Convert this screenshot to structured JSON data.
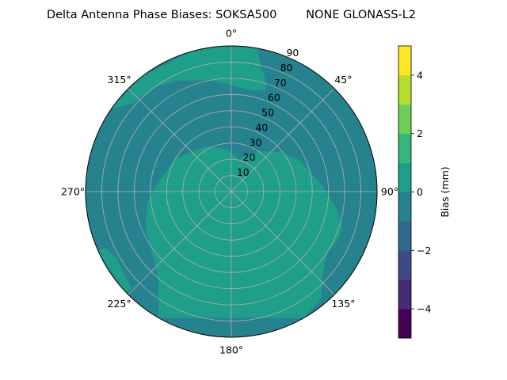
{
  "chart_data": {
    "type": "heatmap",
    "projection": "polar",
    "title": "Delta Antenna Phase Biases: SOKSA500        NONE GLONASS-L2",
    "theta_direction": "clockwise",
    "theta_zero": "top",
    "theta_ticks": [
      {
        "deg": 0,
        "label": "0°"
      },
      {
        "deg": 45,
        "label": "45°"
      },
      {
        "deg": 90,
        "label": "90°"
      },
      {
        "deg": 135,
        "label": "135°"
      },
      {
        "deg": 180,
        "label": "180°"
      },
      {
        "deg": 225,
        "label": "225°"
      },
      {
        "deg": 270,
        "label": "270°"
      },
      {
        "deg": 315,
        "label": "315°"
      }
    ],
    "r_range": [
      0,
      90
    ],
    "r_ticks": [
      10,
      20,
      30,
      40,
      50,
      60,
      70,
      80,
      90
    ],
    "r_tick_labels": [
      "10",
      "20",
      "30",
      "40",
      "50",
      "60",
      "70",
      "80",
      "90"
    ],
    "grid": true,
    "colorbar": {
      "label": "Bias (mm)",
      "range": [
        -5,
        5
      ],
      "levels": [
        -5,
        -4,
        -3,
        -2,
        -1,
        0,
        1,
        2,
        3,
        4,
        5
      ],
      "colors": [
        "#440154",
        "#482878",
        "#3e4989",
        "#31688e",
        "#26828e",
        "#1f9e89",
        "#35b779",
        "#6ece58",
        "#b5de2b",
        "#fde725"
      ],
      "ticks": [
        -4,
        -2,
        0,
        2,
        4
      ],
      "tick_labels": [
        "−4",
        "−2",
        "0",
        "2",
        "4"
      ]
    },
    "background_level": [
      -1,
      0
    ],
    "background_color": "#26828e",
    "regions": [
      {
        "level": [
          0,
          1
        ],
        "color": "#1f9e89",
        "name": "south-positive-lobe",
        "polygon_theta_r": [
          [
            20,
            22
          ],
          [
            35,
            30
          ],
          [
            50,
            38
          ],
          [
            65,
            46
          ],
          [
            80,
            52
          ],
          [
            92,
            60
          ],
          [
            100,
            66
          ],
          [
            108,
            72
          ],
          [
            115,
            72
          ],
          [
            122,
            70
          ],
          [
            130,
            74
          ],
          [
            140,
            86
          ],
          [
            150,
            90
          ],
          [
            210,
            90
          ],
          [
            214,
            80
          ],
          [
            220,
            70
          ],
          [
            228,
            64
          ],
          [
            236,
            60
          ],
          [
            244,
            58
          ],
          [
            250,
            56
          ],
          [
            262,
            52
          ],
          [
            275,
            46
          ],
          [
            300,
            40
          ],
          [
            330,
            32
          ],
          [
            355,
            26
          ],
          [
            15,
            20
          ]
        ]
      },
      {
        "level": [
          0,
          1
        ],
        "color": "#1f9e89",
        "name": "north-positive-lobe",
        "polygon_theta_r": [
          [
            305,
            90
          ],
          [
            322,
            90
          ],
          [
            345,
            90
          ],
          [
            358,
            90
          ],
          [
            10,
            90
          ],
          [
            13,
            80
          ],
          [
            18,
            70
          ],
          [
            18,
            66
          ],
          [
            10,
            64
          ],
          [
            0,
            66
          ],
          [
            -10,
            70
          ],
          [
            -25,
            76
          ],
          [
            -35,
            80
          ],
          [
            -48,
            82
          ],
          [
            -55,
            90
          ]
        ]
      },
      {
        "level": [
          0,
          1
        ],
        "color": "#1f9e89",
        "name": "southwest-edge-patch",
        "polygon_theta_r": [
          [
            226,
            86
          ],
          [
            232,
            84
          ],
          [
            240,
            82
          ],
          [
            246,
            86
          ],
          [
            246,
            90
          ],
          [
            226,
            90
          ]
        ]
      }
    ]
  }
}
